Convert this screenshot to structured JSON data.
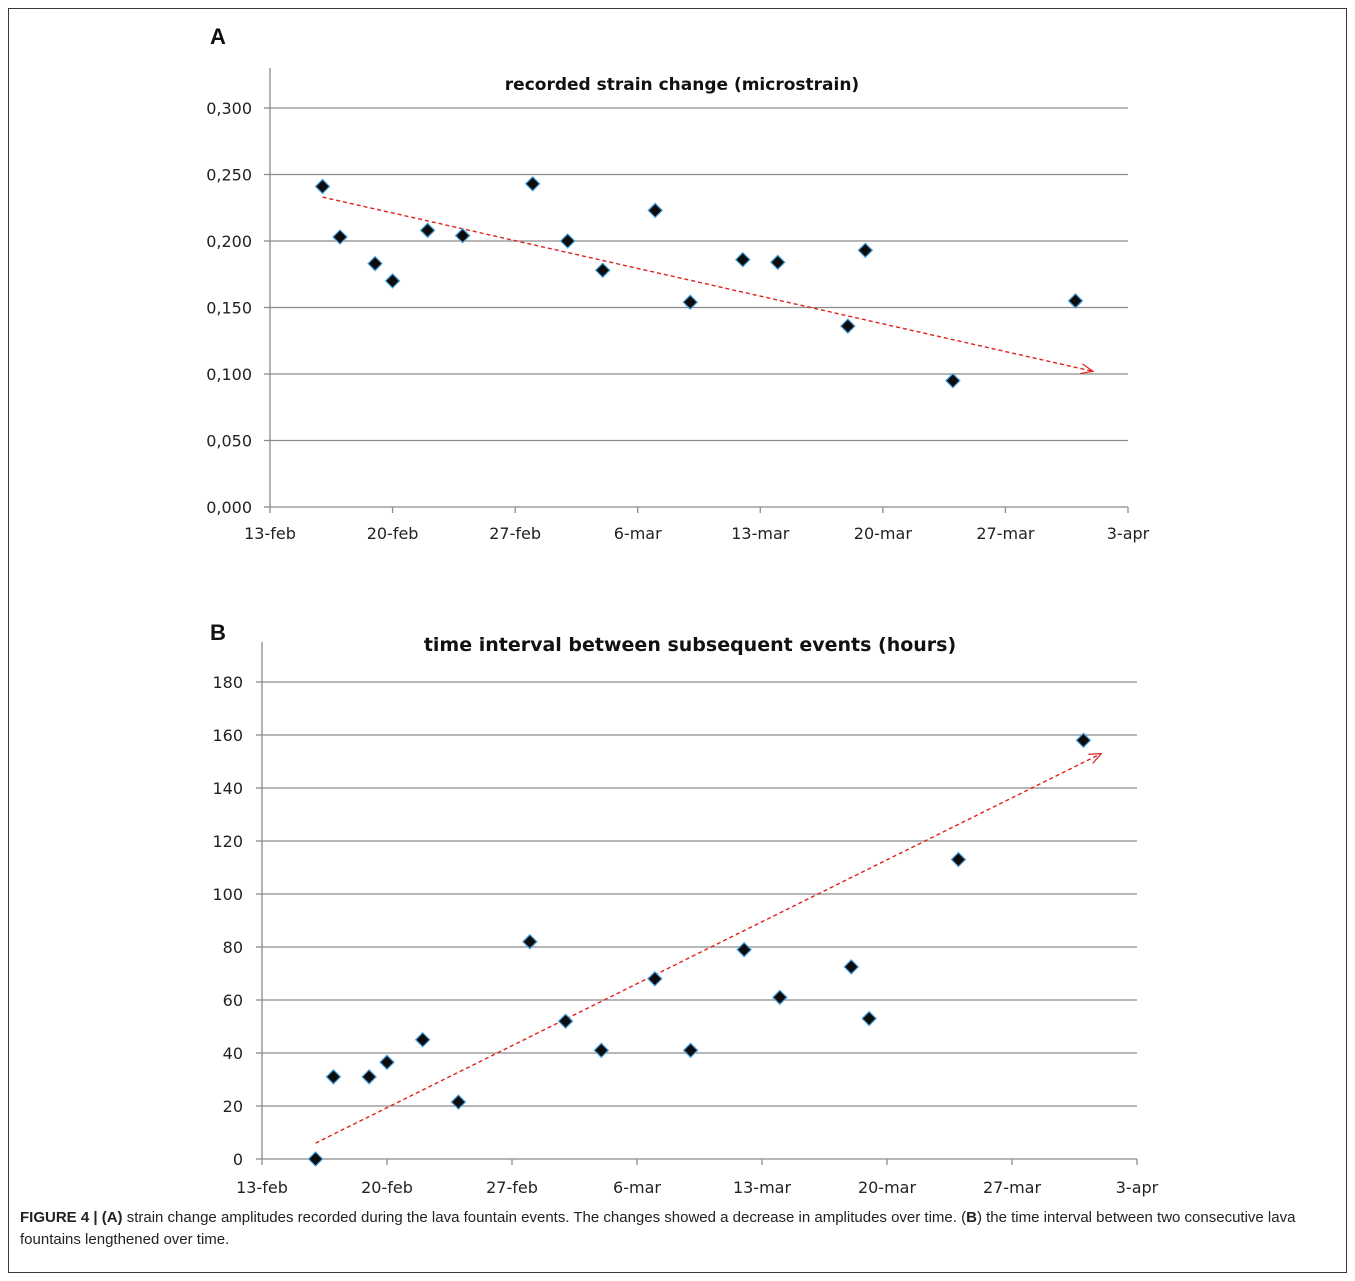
{
  "chart_data": [
    {
      "type": "scatter",
      "panel_label": "A",
      "title": "recorded strain change (microstrain)",
      "x_ticks": [
        "13-feb",
        "20-feb",
        "27-feb",
        "6-mar",
        "13-mar",
        "20-mar",
        "27-mar",
        "3-apr"
      ],
      "y_ticks": [
        "0,000",
        "0,050",
        "0,100",
        "0,150",
        "0,200",
        "0,250",
        "0,300"
      ],
      "ylim": [
        0,
        0.3
      ],
      "xlim": [
        "13-feb",
        "3-apr"
      ],
      "grid": true,
      "x": [
        "16-feb",
        "17-feb",
        "19-feb",
        "20-feb",
        "22-feb",
        "24-feb",
        "28-feb",
        "2-mar",
        "4-mar",
        "7-mar",
        "9-mar",
        "12-mar",
        "14-mar",
        "18-mar",
        "19-mar",
        "24-mar",
        "31-mar"
      ],
      "y": [
        0.241,
        0.203,
        0.183,
        0.17,
        0.208,
        0.204,
        0.243,
        0.2,
        0.178,
        0.223,
        0.154,
        0.186,
        0.184,
        0.136,
        0.193,
        0.095,
        0.155
      ],
      "trend": {
        "from": [
          "16-feb",
          0.233
        ],
        "to": [
          "1-apr",
          0.102
        ],
        "color": "#e0201b"
      },
      "marker_color": "#0d0d0d",
      "marker_edge": "#4aa3df"
    },
    {
      "type": "scatter",
      "panel_label": "B",
      "title": "time interval between subsequent events (hours)",
      "x_ticks": [
        "13-feb",
        "20-feb",
        "27-feb",
        "6-mar",
        "13-mar",
        "20-mar",
        "27-mar",
        "3-apr"
      ],
      "y_ticks": [
        "0",
        "20",
        "40",
        "60",
        "80",
        "100",
        "120",
        "140",
        "160",
        "180"
      ],
      "ylim": [
        0,
        180
      ],
      "xlim": [
        "13-feb",
        "3-apr"
      ],
      "grid": true,
      "x": [
        "16-feb",
        "17-feb",
        "19-feb",
        "20-feb",
        "22-feb",
        "24-feb",
        "28-feb",
        "2-mar",
        "4-mar",
        "7-mar",
        "9-mar",
        "12-mar",
        "14-mar",
        "18-mar",
        "19-mar",
        "24-mar",
        "31-mar"
      ],
      "y": [
        0,
        31,
        31,
        36.5,
        45,
        21.5,
        82,
        52,
        41,
        68,
        41,
        79,
        61,
        72.5,
        53,
        113,
        158
      ],
      "trend": {
        "from": [
          "16-feb",
          6
        ],
        "to": [
          "1-apr",
          153
        ],
        "color": "#e0201b"
      },
      "marker_color": "#0d0d0d",
      "marker_edge": "#4aa3df"
    }
  ],
  "caption": {
    "figure_label": "FIGURE 4 |",
    "a_label": "(A)",
    "a_text": " strain change amplitudes recorded during the lava fountain events. The changes showed a decrease in amplitudes over time. (",
    "b_label": "B",
    "b_text": ") the time interval between two consecutive lava fountains lengthened over time."
  }
}
